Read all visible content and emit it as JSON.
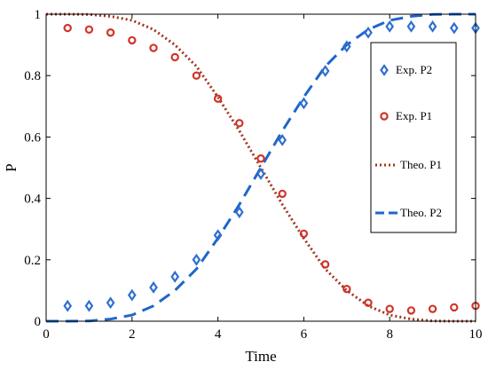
{
  "chart_data": {
    "type": "scatter",
    "xlabel": "Time",
    "ylabel": "P",
    "xlim": [
      0,
      10
    ],
    "ylim": [
      0,
      1
    ],
    "xticks": [
      "0",
      "2",
      "4",
      "6",
      "8",
      "10"
    ],
    "yticks": [
      "0",
      "0.2",
      "0.4",
      "0.6",
      "0.8",
      "1"
    ],
    "grid": false,
    "legend_position": "right",
    "series": [
      {
        "name": "Exp. P2",
        "kind": "scatter",
        "marker": "diamond",
        "color": "#2f6fd1",
        "x": [
          0.5,
          1.0,
          1.5,
          2.0,
          2.5,
          3.0,
          3.5,
          4.0,
          4.5,
          5.0,
          5.5,
          6.0,
          6.5,
          7.0,
          7.5,
          8.0,
          8.5,
          9.0,
          9.5,
          10.0
        ],
        "y": [
          0.05,
          0.05,
          0.06,
          0.085,
          0.11,
          0.145,
          0.2,
          0.28,
          0.355,
          0.48,
          0.59,
          0.71,
          0.815,
          0.895,
          0.94,
          0.96,
          0.96,
          0.96,
          0.955,
          0.955
        ]
      },
      {
        "name": "Exp. P1",
        "kind": "scatter",
        "marker": "circle",
        "color": "#d1342a",
        "x": [
          0.5,
          1.0,
          1.5,
          2.0,
          2.5,
          3.0,
          3.5,
          4.0,
          4.5,
          5.0,
          5.5,
          6.0,
          6.5,
          7.0,
          7.5,
          8.0,
          8.5,
          9.0,
          9.5,
          10.0
        ],
        "y": [
          0.955,
          0.95,
          0.94,
          0.915,
          0.89,
          0.86,
          0.8,
          0.725,
          0.645,
          0.53,
          0.415,
          0.285,
          0.185,
          0.105,
          0.06,
          0.04,
          0.035,
          0.04,
          0.045,
          0.05
        ]
      },
      {
        "name": "Theo. P1",
        "kind": "line",
        "style": "dotted",
        "color": "#a0341c",
        "x": [
          0,
          0.5,
          1.0,
          1.5,
          2.0,
          2.5,
          3.0,
          3.5,
          4.0,
          4.5,
          5.0,
          5.5,
          6.0,
          6.5,
          7.0,
          7.5,
          8.0,
          8.5,
          9.0,
          9.5,
          10.0
        ],
        "y": [
          1.0,
          1.0,
          0.999,
          0.993,
          0.98,
          0.95,
          0.9,
          0.83,
          0.73,
          0.62,
          0.5,
          0.38,
          0.27,
          0.17,
          0.1,
          0.05,
          0.02,
          0.007,
          0.001,
          0.0,
          0.0
        ]
      },
      {
        "name": "Theo. P2",
        "kind": "line",
        "style": "dashed",
        "color": "#1f66c9",
        "x": [
          0,
          0.5,
          1.0,
          1.5,
          2.0,
          2.5,
          3.0,
          3.5,
          4.0,
          4.5,
          5.0,
          5.5,
          6.0,
          6.5,
          7.0,
          7.5,
          8.0,
          8.5,
          9.0,
          9.5,
          10.0
        ],
        "y": [
          0.0,
          0.0,
          0.001,
          0.007,
          0.02,
          0.05,
          0.1,
          0.17,
          0.27,
          0.38,
          0.5,
          0.62,
          0.73,
          0.83,
          0.9,
          0.95,
          0.98,
          0.993,
          0.999,
          1.0,
          1.0
        ]
      }
    ]
  }
}
